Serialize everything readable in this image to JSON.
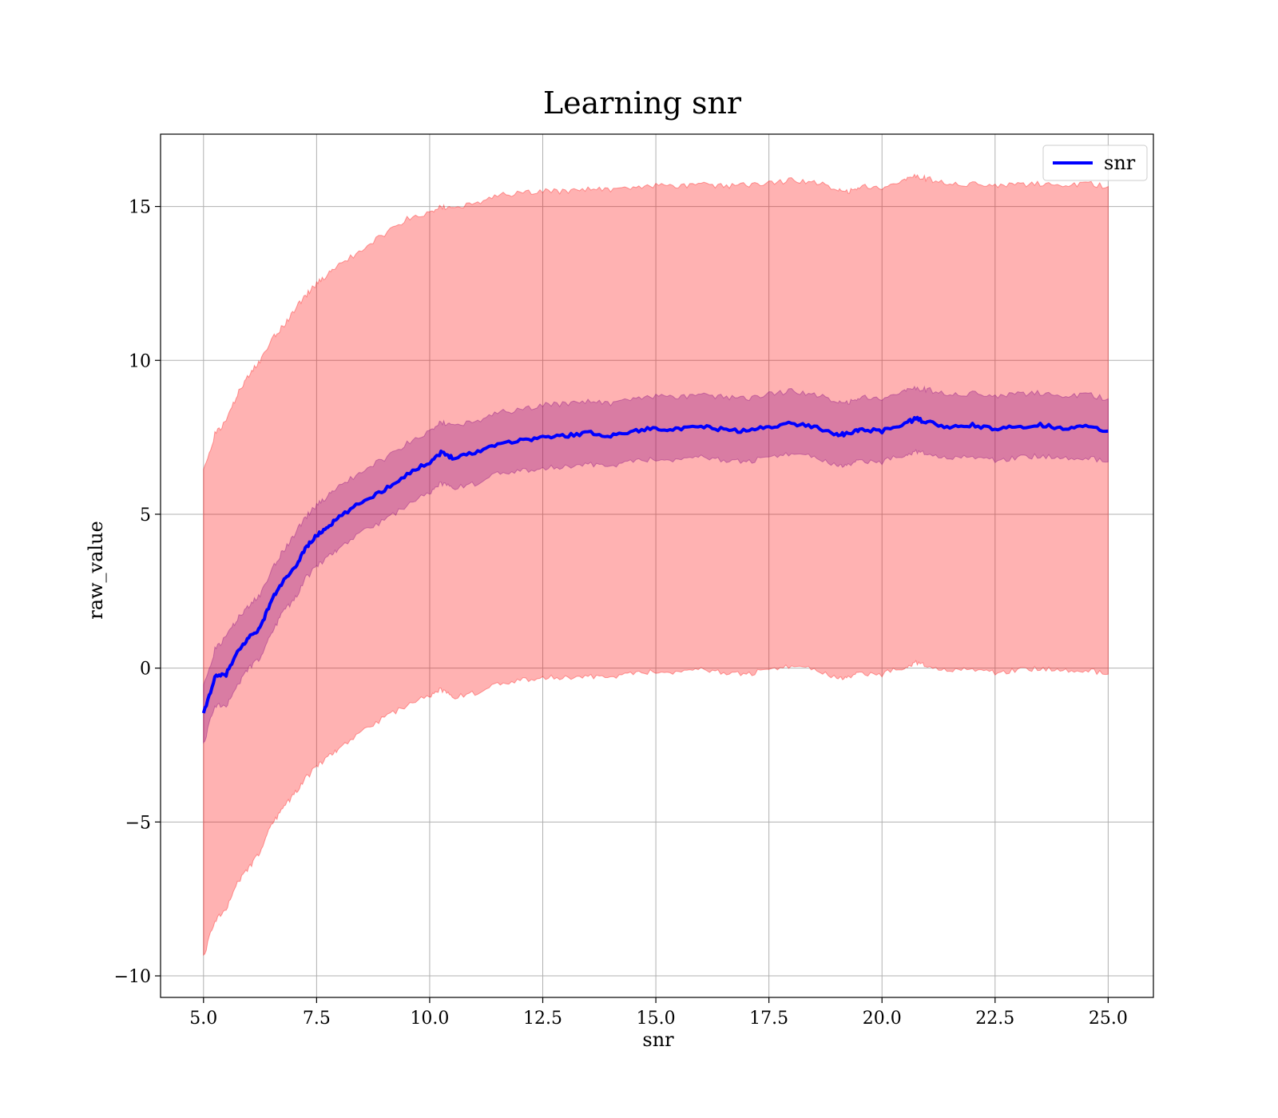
{
  "chart_data": {
    "type": "line",
    "title": "Learning snr",
    "xlabel": "snr",
    "ylabel": "raw_value",
    "xlim": [
      4.05,
      26.0
    ],
    "ylim": [
      -10.7,
      17.35
    ],
    "grid": true,
    "legend": {
      "placement": "top-right",
      "entries": [
        "snr"
      ]
    },
    "x_ticks": [
      5.0,
      7.5,
      10.0,
      12.5,
      15.0,
      17.5,
      20.0,
      22.5,
      25.0
    ],
    "x_tick_labels": [
      "5.0",
      "7.5",
      "10.0",
      "12.5",
      "15.0",
      "17.5",
      "20.0",
      "22.5",
      "25.0"
    ],
    "y_ticks": [
      -10,
      -5,
      0,
      5,
      10,
      15
    ],
    "y_tick_labels": [
      "−10",
      "−5",
      "0",
      "5",
      "10",
      "15"
    ],
    "x": [
      5.0,
      5.25,
      5.5,
      5.75,
      6.0,
      6.25,
      6.5,
      6.75,
      7.0,
      7.25,
      7.5,
      7.75,
      8.0,
      8.5,
      9.0,
      9.5,
      10.0,
      10.25,
      10.5,
      11.0,
      11.5,
      12.0,
      12.5,
      13.0,
      13.5,
      14.0,
      14.5,
      15.0,
      15.5,
      16.0,
      16.5,
      17.0,
      17.5,
      18.0,
      18.5,
      19.0,
      19.25,
      19.5,
      20.0,
      20.5,
      20.75,
      21.0,
      21.5,
      22.0,
      22.5,
      23.0,
      23.5,
      24.0,
      24.5,
      25.0
    ],
    "series": [
      {
        "name": "snr",
        "color": "#0000ff",
        "values": [
          -1.5,
          -0.3,
          -0.2,
          0.5,
          1.0,
          1.3,
          2.2,
          2.8,
          3.2,
          3.9,
          4.3,
          4.6,
          4.9,
          5.4,
          5.8,
          6.3,
          6.7,
          7.0,
          6.85,
          7.0,
          7.3,
          7.4,
          7.5,
          7.55,
          7.65,
          7.55,
          7.7,
          7.8,
          7.75,
          7.85,
          7.75,
          7.7,
          7.85,
          7.95,
          7.85,
          7.6,
          7.6,
          7.75,
          7.7,
          7.95,
          8.1,
          8.0,
          7.8,
          7.9,
          7.75,
          7.85,
          7.9,
          7.8,
          7.85,
          7.7
        ]
      }
    ],
    "bands": [
      {
        "name": "outer",
        "color": "#ff0000",
        "upper": [
          6.4,
          7.6,
          8.0,
          8.9,
          9.5,
          10.0,
          10.7,
          11.1,
          11.6,
          12.1,
          12.5,
          12.8,
          13.1,
          13.6,
          14.1,
          14.6,
          14.8,
          15.0,
          14.9,
          15.1,
          15.35,
          15.45,
          15.5,
          15.5,
          15.55,
          15.55,
          15.6,
          15.7,
          15.65,
          15.75,
          15.65,
          15.7,
          15.75,
          15.85,
          15.8,
          15.55,
          15.5,
          15.65,
          15.6,
          15.85,
          16.0,
          15.9,
          15.7,
          15.75,
          15.65,
          15.7,
          15.75,
          15.7,
          15.75,
          15.65
        ],
        "lower": [
          -9.4,
          -8.2,
          -7.8,
          -7.0,
          -6.5,
          -6.0,
          -5.1,
          -4.6,
          -4.1,
          -3.6,
          -3.2,
          -2.9,
          -2.6,
          -2.1,
          -1.6,
          -1.2,
          -0.9,
          -0.7,
          -0.95,
          -0.8,
          -0.55,
          -0.4,
          -0.3,
          -0.3,
          -0.25,
          -0.3,
          -0.2,
          -0.1,
          -0.15,
          -0.05,
          -0.15,
          -0.2,
          -0.05,
          0.05,
          -0.05,
          -0.3,
          -0.3,
          -0.15,
          -0.2,
          0.05,
          0.2,
          0.1,
          -0.1,
          0.0,
          -0.15,
          -0.05,
          0.0,
          -0.1,
          -0.05,
          -0.2
        ]
      },
      {
        "name": "inner",
        "color": "#800080",
        "upper": [
          -0.6,
          0.6,
          1.0,
          1.6,
          2.0,
          2.4,
          3.2,
          3.8,
          4.3,
          4.9,
          5.3,
          5.6,
          5.9,
          6.4,
          6.8,
          7.3,
          7.7,
          8.0,
          7.85,
          8.0,
          8.3,
          8.4,
          8.55,
          8.6,
          8.65,
          8.6,
          8.75,
          8.85,
          8.8,
          8.9,
          8.8,
          8.75,
          8.9,
          9.0,
          8.9,
          8.65,
          8.65,
          8.8,
          8.75,
          9.0,
          9.1,
          9.05,
          8.85,
          8.95,
          8.8,
          8.9,
          8.95,
          8.85,
          8.9,
          8.75
        ],
        "lower": [
          -2.5,
          -1.2,
          -1.2,
          -0.6,
          0.0,
          0.3,
          1.1,
          1.8,
          2.2,
          2.9,
          3.3,
          3.6,
          3.9,
          4.4,
          4.8,
          5.3,
          5.7,
          6.0,
          5.85,
          6.0,
          6.3,
          6.4,
          6.5,
          6.55,
          6.65,
          6.55,
          6.7,
          6.8,
          6.75,
          6.85,
          6.75,
          6.7,
          6.85,
          6.95,
          6.85,
          6.6,
          6.6,
          6.75,
          6.7,
          6.95,
          7.05,
          7.0,
          6.8,
          6.9,
          6.75,
          6.85,
          6.9,
          6.8,
          6.85,
          6.7
        ]
      }
    ]
  }
}
